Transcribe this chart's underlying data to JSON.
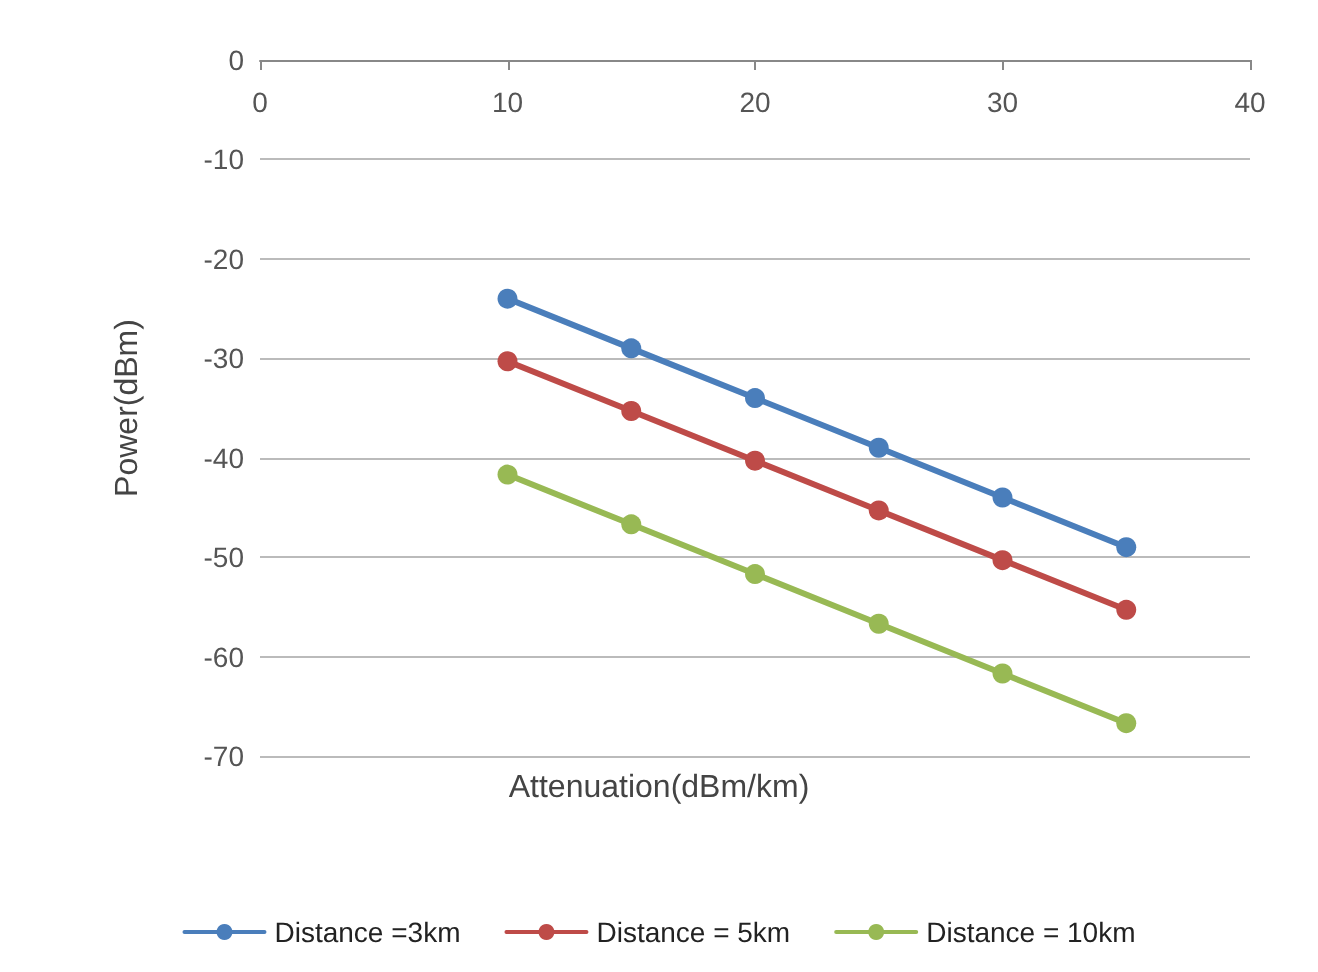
{
  "chart_data": {
    "type": "line",
    "xlabel": "Attenuation(dBm/km)",
    "ylabel": "Power(dBm)",
    "x": [
      10,
      15,
      20,
      25,
      30,
      35
    ],
    "series": [
      {
        "name": "Distance =3km",
        "color": "#4a7ebb",
        "values": [
          -24,
          -29,
          -34,
          -39,
          -44,
          -49
        ]
      },
      {
        "name": "Distance = 5km",
        "color": "#be4b48",
        "values": [
          -30.3,
          -35.3,
          -40.3,
          -45.3,
          -50.3,
          -55.3
        ]
      },
      {
        "name": "Distance = 10km",
        "color": "#98b954",
        "values": [
          -41.7,
          -46.7,
          -51.7,
          -56.7,
          -61.7,
          -66.7
        ]
      }
    ],
    "xlim": [
      0,
      40
    ],
    "xticks": [
      0,
      10,
      20,
      30,
      40
    ],
    "ylim": [
      -70,
      0
    ],
    "yticks": [
      0,
      -10,
      -20,
      -30,
      -40,
      -50,
      -60,
      -70
    ],
    "grid": "y",
    "legend": "bottom",
    "marker": "circle",
    "line_style": "solid"
  }
}
